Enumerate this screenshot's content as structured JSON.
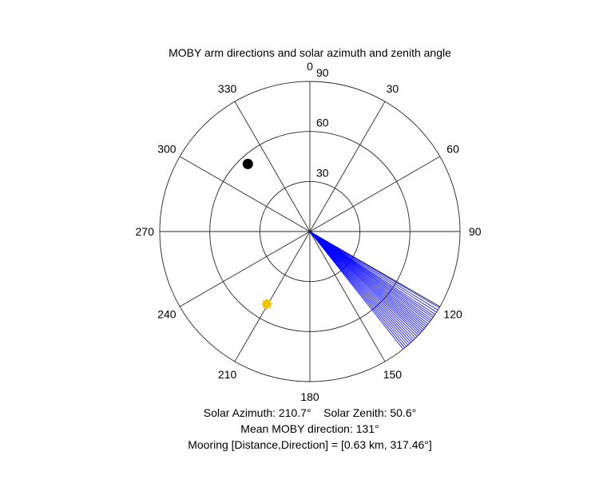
{
  "chart_data": {
    "type": "polar",
    "title": "MOBY arm directions and solar azimuth and zenith angle",
    "theta_zero": "north",
    "theta_direction": "clockwise",
    "theta_ticks": [
      0,
      30,
      60,
      90,
      120,
      150,
      180,
      210,
      240,
      270,
      300,
      330
    ],
    "r_max": 90,
    "r_ticks": [
      30,
      60,
      90
    ],
    "grid": true,
    "series": [
      {
        "type": "radial-lines",
        "color": "#0000ff",
        "r": 90,
        "theta": [
          120.5,
          121.5,
          122.5,
          123.5,
          124.3,
          125.0,
          125.8,
          126.5,
          127.2,
          128.0,
          128.7,
          129.4,
          130.1,
          130.8,
          131.5,
          132.2,
          132.9,
          133.6,
          134.4,
          135.2,
          136.0,
          136.8,
          137.6,
          138.4,
          139.2,
          140.0,
          140.8,
          141.6
        ]
      },
      {
        "type": "marker",
        "color": "#000000",
        "marker": "filled-circle",
        "theta": 317.46,
        "r": 55
      },
      {
        "type": "marker",
        "color": "#ffd000",
        "marker": "sun",
        "theta": 210.7,
        "r": 50.6
      }
    ]
  },
  "caption": {
    "solar_azimuth": "Solar Azimuth: 210.7°",
    "solar_zenith": "Solar Zenith: 50.6°",
    "mean_direction": "Mean MOBY direction: 131°",
    "mooring": "Mooring [Distance,Direction] = [0.63 km, 317.46°]"
  },
  "colors": {
    "grid": "#262626",
    "arms": "#0000ff",
    "mooring": "#000000",
    "sun": "#ffd000"
  }
}
